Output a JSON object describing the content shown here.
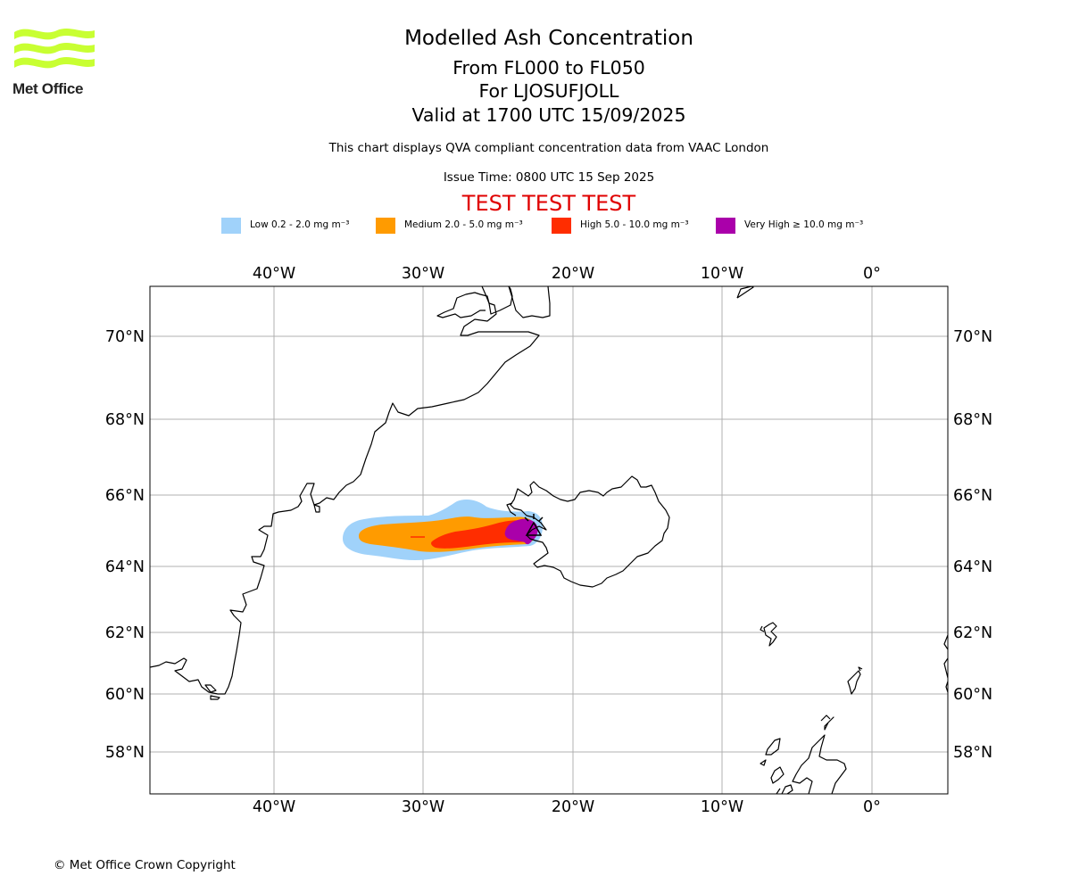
{
  "logo": {
    "text": "Met Office"
  },
  "titles": {
    "main": "Modelled Ash Concentration",
    "levels": "From FL000 to FL050",
    "volcano": "For LJOSUFJOLL",
    "valid": "Valid at 1700 UTC 15/09/2025"
  },
  "subtitle": "This chart displays QVA compliant concentration data from VAAC London",
  "issue_time": "Issue Time: 0800 UTC 15 Sep 2025",
  "test_banner": "TEST TEST TEST",
  "legend": [
    {
      "label": "Low 0.2 - 2.0 mg m⁻³",
      "color": "#a0d2fa"
    },
    {
      "label": "Medium 2.0 - 5.0 mg m⁻³",
      "color": "#ff9b00"
    },
    {
      "label": "High 5.0 - 10.0 mg m⁻³",
      "color": "#ff2d00"
    },
    {
      "label": "Very High ≥ 10.0 mg m⁻³",
      "color": "#aa00aa"
    }
  ],
  "map": {
    "lon_labels": [
      "40°W",
      "30°W",
      "20°W",
      "10°W",
      "0°"
    ],
    "lat_labels": [
      "70°N",
      "68°N",
      "66°N",
      "64°N",
      "62°N",
      "60°N",
      "58°N"
    ],
    "grid": true,
    "volcano_marker": "volcano-icon"
  },
  "copyright": "© Met Office Crown Copyright"
}
